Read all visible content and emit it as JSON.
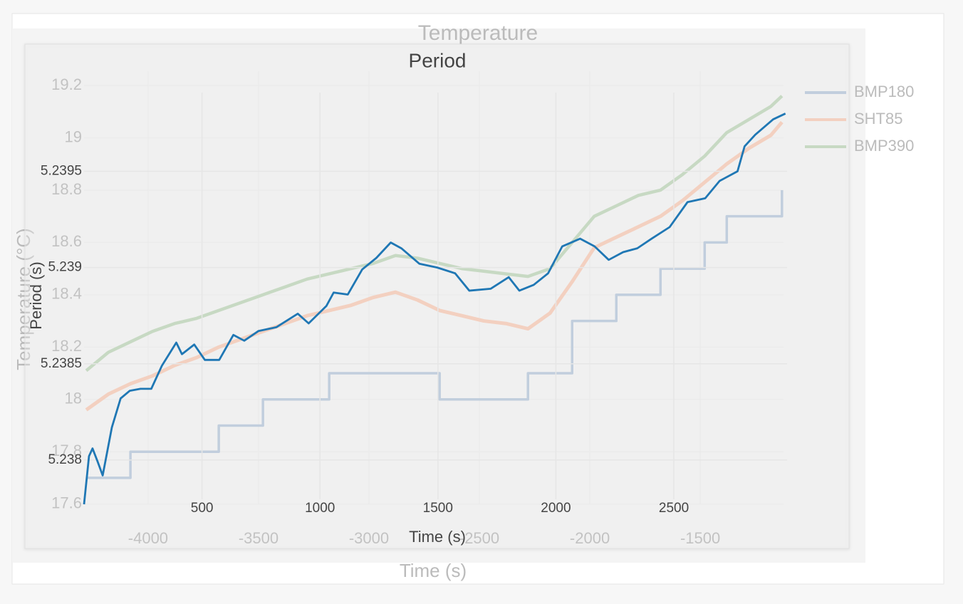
{
  "chart_data": [
    {
      "type": "line",
      "title": "Temperature",
      "x_label": "Time (s)",
      "y_label": "Temperature (°C)",
      "x": [
        -4280,
        -4180,
        -4080,
        -3980,
        -3880,
        -3780,
        -3680,
        -3580,
        -3480,
        -3380,
        -3280,
        -3180,
        -3080,
        -2980,
        -2880,
        -2780,
        -2680,
        -2580,
        -2480,
        -2380,
        -2280,
        -2180,
        -2080,
        -1980,
        -1880,
        -1780,
        -1680,
        -1580,
        -1480,
        -1380,
        -1280,
        -1180,
        -1130
      ],
      "series": [
        {
          "name": "BMP180",
          "color": "#a9bdd6",
          "shape": "hv",
          "values": [
            17.7,
            17.7,
            17.8,
            17.8,
            17.8,
            17.8,
            17.9,
            17.9,
            18.0,
            18.0,
            18.0,
            18.1,
            18.1,
            18.1,
            18.1,
            18.1,
            18.0,
            18.0,
            18.0,
            18.0,
            18.1,
            18.1,
            18.3,
            18.3,
            18.4,
            18.4,
            18.5,
            18.5,
            18.6,
            18.7,
            18.7,
            18.7,
            18.8
          ]
        },
        {
          "name": "SHT85",
          "color": "#f9c0a6",
          "values": [
            17.96,
            18.02,
            18.06,
            18.09,
            18.13,
            18.16,
            18.2,
            18.23,
            18.26,
            18.29,
            18.32,
            18.34,
            18.36,
            18.39,
            18.41,
            18.38,
            18.34,
            18.32,
            18.3,
            18.29,
            18.27,
            18.33,
            18.45,
            18.58,
            18.62,
            18.66,
            18.7,
            18.76,
            18.83,
            18.9,
            18.96,
            19.01,
            19.06
          ]
        },
        {
          "name": "BMP390",
          "color": "#b2cfab",
          "values": [
            18.11,
            18.18,
            18.22,
            18.26,
            18.29,
            18.31,
            18.34,
            18.37,
            18.4,
            18.43,
            18.46,
            18.48,
            18.5,
            18.52,
            18.55,
            18.54,
            18.52,
            18.5,
            18.49,
            18.48,
            18.47,
            18.5,
            18.6,
            18.7,
            18.74,
            18.78,
            18.8,
            18.86,
            18.93,
            19.02,
            19.07,
            19.12,
            19.16
          ]
        }
      ],
      "xlim": [
        -4290,
        -1123
      ],
      "xticks": [
        -4000,
        -3500,
        -3000,
        -2500,
        -2000,
        -1500
      ],
      "ylim": [
        17.58,
        19.26
      ],
      "yticks": [
        17.6,
        17.8,
        18,
        18.2,
        18.4,
        18.6,
        18.8,
        19,
        19.2
      ],
      "grid": true,
      "legend": "right"
    },
    {
      "type": "line",
      "title": "Period",
      "x_label": "Time (s)",
      "y_label": "Period (s)",
      "x": [
        0,
        21,
        36,
        58,
        79,
        118,
        155,
        194,
        239,
        285,
        330,
        391,
        415,
        467,
        512,
        573,
        633,
        679,
        739,
        815,
        906,
        952,
        1027,
        1058,
        1118,
        1179,
        1239,
        1300,
        1345,
        1421,
        1497,
        1573,
        1633,
        1724,
        1800,
        1845,
        1906,
        1967,
        2027,
        2103,
        2164,
        2224,
        2285,
        2345,
        2406,
        2482,
        2558,
        2633,
        2694,
        2770,
        2800,
        2845,
        2921,
        2973
      ],
      "series": [
        {
          "color": "#1f77b4",
          "values": [
            5.23777,
            5.23802,
            5.23806,
            5.23799,
            5.23792,
            5.23817,
            5.23832,
            5.23836,
            5.23837,
            5.23837,
            5.23849,
            5.23861,
            5.23855,
            5.2386,
            5.23852,
            5.23852,
            5.23865,
            5.23862,
            5.23867,
            5.23869,
            5.23876,
            5.23871,
            5.2388,
            5.23887,
            5.23886,
            5.23899,
            5.23905,
            5.23913,
            5.2391,
            5.23902,
            5.239,
            5.23897,
            5.23888,
            5.23889,
            5.23895,
            5.23888,
            5.23891,
            5.23897,
            5.23911,
            5.23915,
            5.23911,
            5.23904,
            5.23908,
            5.2391,
            5.23915,
            5.23921,
            5.23934,
            5.23936,
            5.23945,
            5.2395,
            5.23963,
            5.23969,
            5.23977,
            5.2398
          ]
        }
      ],
      "xlim": [
        0,
        2980
      ],
      "xticks": [
        500,
        1000,
        1500,
        2000,
        2500
      ],
      "ylim": [
        5.23777,
        5.24002
      ],
      "yticks": [
        5.238,
        5.2385,
        5.239,
        5.2395
      ],
      "grid": true
    }
  ]
}
